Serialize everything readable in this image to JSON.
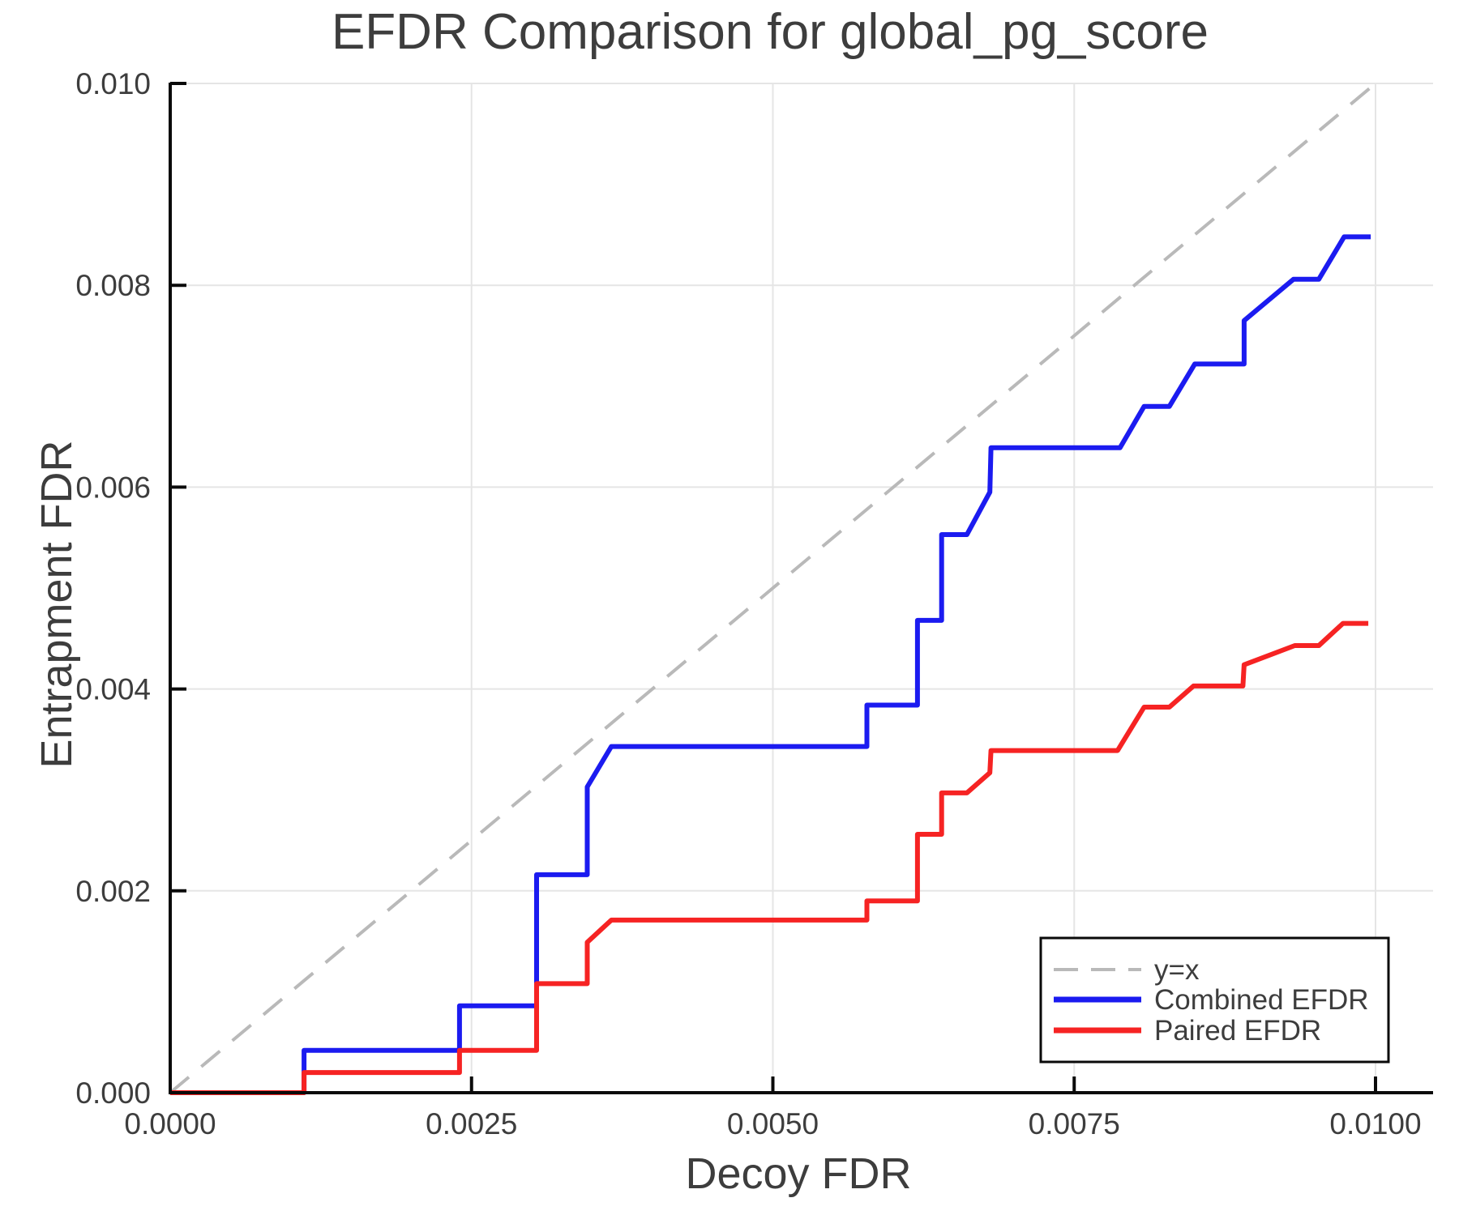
{
  "figure": {
    "title": "EFDR Comparison for global_pg_score",
    "x_axis_label": "Decoy FDR",
    "y_axis_label": "Entrapment FDR"
  },
  "colors": {
    "combined": "#1b1bf0",
    "paired": "#f62323",
    "identity": "#b9b9b9",
    "grid": "#e5e5e5",
    "spine": "#0a0a0a",
    "text": "#3d3d3d",
    "legend_border": "#0a0a0a",
    "legend_background": "#ffffff"
  },
  "chart_data": {
    "type": "line",
    "title": "EFDR Comparison for global_pg_score",
    "xlabel": "Decoy FDR",
    "ylabel": "Entrapment FDR",
    "xlim": [
      0,
      0.01048
    ],
    "ylim": [
      0,
      0.01
    ],
    "grid": true,
    "legend_position": "lower right",
    "x_ticks": [
      {
        "value": 0.0,
        "label": "0.0000"
      },
      {
        "value": 0.0025,
        "label": "0.0025"
      },
      {
        "value": 0.005,
        "label": "0.0050"
      },
      {
        "value": 0.0075,
        "label": "0.0075"
      },
      {
        "value": 0.01,
        "label": "0.0100"
      }
    ],
    "y_ticks": [
      {
        "value": 0.0,
        "label": "0.000"
      },
      {
        "value": 0.002,
        "label": "0.002"
      },
      {
        "value": 0.004,
        "label": "0.004"
      },
      {
        "value": 0.006,
        "label": "0.006"
      },
      {
        "value": 0.008,
        "label": "0.008"
      },
      {
        "value": 0.01,
        "label": "0.010"
      }
    ],
    "series": [
      {
        "name": "y=x",
        "style": "dashed",
        "color": "#b9b9b9",
        "width": 4,
        "points": [
          [
            0,
            0
          ],
          [
            0.01,
            0.01
          ]
        ]
      },
      {
        "name": "Combined EFDR",
        "style": "solid",
        "color": "#1b1bf0",
        "width": 6,
        "points": [
          [
            0.0,
            0.0
          ],
          [
            0.00111,
            0.0
          ],
          [
            0.00111,
            0.00042
          ],
          [
            0.0024,
            0.00042
          ],
          [
            0.0024,
            0.00086
          ],
          [
            0.00304,
            0.00086
          ],
          [
            0.00304,
            0.00216
          ],
          [
            0.00346,
            0.00216
          ],
          [
            0.00346,
            0.00303
          ],
          [
            0.00366,
            0.00343
          ],
          [
            0.00578,
            0.00343
          ],
          [
            0.00578,
            0.00384
          ],
          [
            0.0062,
            0.00384
          ],
          [
            0.0062,
            0.00468
          ],
          [
            0.0064,
            0.00468
          ],
          [
            0.0064,
            0.00553
          ],
          [
            0.00661,
            0.00553
          ],
          [
            0.0068,
            0.00595
          ],
          [
            0.00681,
            0.00639
          ],
          [
            0.00788,
            0.00639
          ],
          [
            0.00808,
            0.0068
          ],
          [
            0.00829,
            0.0068
          ],
          [
            0.0085,
            0.00722
          ],
          [
            0.00891,
            0.00722
          ],
          [
            0.00891,
            0.00765
          ],
          [
            0.00932,
            0.00806
          ],
          [
            0.00953,
            0.00806
          ],
          [
            0.00974,
            0.00848
          ],
          [
            0.00996,
            0.00848
          ]
        ]
      },
      {
        "name": "Paired EFDR",
        "style": "solid",
        "color": "#f62323",
        "width": 6,
        "points": [
          [
            0.0,
            0.0
          ],
          [
            0.00111,
            0.0
          ],
          [
            0.00111,
            0.0002
          ],
          [
            0.0024,
            0.0002
          ],
          [
            0.0024,
            0.00042
          ],
          [
            0.00304,
            0.00042
          ],
          [
            0.00304,
            0.00108
          ],
          [
            0.00346,
            0.00108
          ],
          [
            0.00346,
            0.00149
          ],
          [
            0.00366,
            0.00171
          ],
          [
            0.00578,
            0.00171
          ],
          [
            0.00578,
            0.0019
          ],
          [
            0.0062,
            0.0019
          ],
          [
            0.0062,
            0.00256
          ],
          [
            0.0064,
            0.00256
          ],
          [
            0.0064,
            0.00297
          ],
          [
            0.00661,
            0.00297
          ],
          [
            0.0068,
            0.00317
          ],
          [
            0.00681,
            0.00339
          ],
          [
            0.00786,
            0.00339
          ],
          [
            0.00808,
            0.00382
          ],
          [
            0.00829,
            0.00382
          ],
          [
            0.00849,
            0.00403
          ],
          [
            0.0089,
            0.00403
          ],
          [
            0.00891,
            0.00424
          ],
          [
            0.00933,
            0.00443
          ],
          [
            0.00953,
            0.00443
          ],
          [
            0.00973,
            0.00465
          ],
          [
            0.00994,
            0.00465
          ]
        ]
      }
    ]
  }
}
